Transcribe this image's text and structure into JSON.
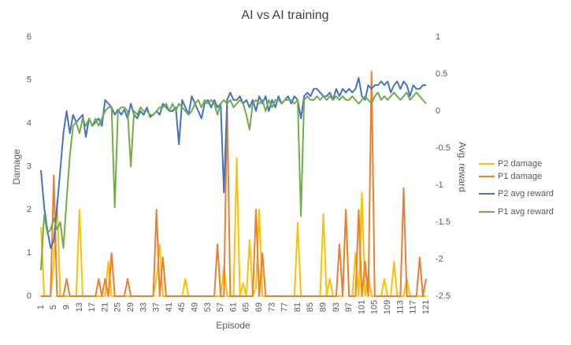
{
  "chart_data": {
    "type": "line",
    "title": "AI vs AI training",
    "x_label": "Episode",
    "y_label": "Damage",
    "y2_label": "Avg. reward",
    "categories": [
      1,
      null,
      null,
      null,
      5,
      null,
      null,
      null,
      9,
      null,
      null,
      null,
      13,
      null,
      null,
      null,
      17,
      null,
      null,
      null,
      21,
      null,
      null,
      null,
      25,
      null,
      null,
      null,
      29,
      null,
      null,
      null,
      33,
      null,
      null,
      null,
      37,
      null,
      null,
      null,
      41,
      null,
      null,
      null,
      45,
      null,
      null,
      null,
      49,
      null,
      null,
      null,
      53,
      null,
      null,
      null,
      57,
      null,
      null,
      null,
      61,
      null,
      null,
      null,
      65,
      null,
      null,
      null,
      69,
      null,
      null,
      null,
      73,
      null,
      null,
      null,
      77,
      null,
      null,
      null,
      81,
      null,
      null,
      null,
      85,
      null,
      null,
      null,
      89,
      null,
      null,
      null,
      93,
      null,
      null,
      null,
      97,
      null,
      null,
      null,
      101,
      null,
      null,
      null,
      105,
      null,
      null,
      null,
      109,
      null,
      null,
      null,
      113,
      null,
      null,
      null,
      117,
      null,
      null,
      null,
      121
    ],
    "ylim": [
      0,
      6
    ],
    "yticks": [
      0,
      1,
      2,
      3,
      4,
      5,
      6
    ],
    "y2lim": [
      -2.5,
      1
    ],
    "y2ticks": [
      1,
      0.5,
      0,
      -0.5,
      -1,
      -1.5,
      -2,
      -2.5
    ],
    "grid": false,
    "legend": "right",
    "series": [
      {
        "name": "P2 damage",
        "color": "#FFC000",
        "values": [
          1.6,
          0,
          0,
          0,
          0.8,
          2.2,
          0,
          0,
          0,
          0,
          0,
          0,
          2.0,
          0,
          0,
          0,
          0,
          0,
          0,
          0,
          0,
          0.8,
          0,
          0,
          0,
          0,
          0,
          0,
          0,
          0,
          0,
          0,
          0,
          0,
          0,
          0,
          0.4,
          1.2,
          0,
          0,
          0,
          0,
          0,
          0,
          0,
          0.4,
          0,
          0,
          0,
          0,
          0,
          0,
          0,
          0,
          0,
          0,
          0,
          0.7,
          0,
          0,
          0,
          3.2,
          0,
          0.3,
          0,
          1.3,
          0,
          0.2,
          2.0,
          0,
          0,
          0,
          0,
          0,
          0,
          0,
          0,
          0,
          0,
          0,
          1.7,
          0,
          0,
          0,
          0,
          0,
          0,
          0,
          1.9,
          0,
          0.4,
          0,
          0,
          0,
          0,
          2.0,
          0,
          0,
          1.0,
          0,
          2.4,
          0,
          0.5,
          0,
          0,
          0,
          0,
          0.4,
          0,
          0,
          0.8,
          0,
          0,
          0,
          0.4,
          0,
          0,
          0,
          0,
          0,
          0
        ]
      },
      {
        "name": "P1 damage",
        "color": "#ED7D31",
        "values": [
          0,
          0,
          0,
          0,
          2.8,
          0,
          0,
          0,
          0.4,
          0,
          0,
          0,
          0,
          0,
          0,
          0,
          0,
          0,
          0.4,
          0,
          0.4,
          0,
          1.0,
          0,
          0,
          0,
          0,
          0.4,
          0,
          0,
          0,
          0,
          0,
          0,
          0,
          0,
          2.0,
          0,
          0.9,
          0,
          0,
          0,
          0,
          0,
          0,
          0,
          0,
          0,
          0,
          0,
          0,
          0,
          0,
          0,
          0,
          1.2,
          0,
          0,
          4.4,
          0,
          0,
          0,
          0,
          0,
          0,
          0,
          0,
          2.0,
          0,
          1.0,
          0,
          0,
          0,
          0,
          0,
          0,
          0,
          0,
          0,
          0,
          0,
          0,
          0,
          0,
          0,
          0,
          0,
          0,
          0,
          0,
          0,
          0,
          0,
          1.2,
          0,
          2.0,
          0,
          0,
          0,
          2.0,
          0,
          0.8,
          0,
          5.2,
          0,
          0,
          0,
          0,
          0,
          0,
          0,
          0,
          0,
          2.5,
          0,
          0,
          0,
          0,
          0.9,
          0,
          0.4
        ]
      },
      {
        "name": "P2 avg reward",
        "color": "#4472C4",
        "axis": "y2",
        "values": [
          -0.8,
          -1.3,
          -1.6,
          -1.85,
          -1.75,
          -1.3,
          -0.8,
          -0.3,
          0,
          -0.3,
          -0.05,
          -0.15,
          -0.1,
          -0.05,
          -0.35,
          -0.1,
          -0.2,
          -0.15,
          -0.1,
          -0.2,
          0.15,
          0.1,
          0.05,
          -0.05,
          0.02,
          -0.05,
          0.02,
          -0.1,
          0.1,
          -0.05,
          -0.1,
          0,
          -0.05,
          0.05,
          -0.08,
          -0.05,
          0,
          -0.05,
          0.1,
          0.05,
          0,
          0,
          0.05,
          -0.45,
          0.15,
          0.05,
          -0.05,
          0.2,
          0.1,
          0,
          -0.1,
          0.1,
          0.15,
          0.05,
          0.15,
          0.05,
          0.1,
          -1.1,
          0.15,
          0.25,
          0.15,
          0.15,
          0.2,
          0.1,
          0.15,
          0.05,
          0.15,
          0,
          0.2,
          0.1,
          0.2,
          0,
          0.15,
          0.05,
          0.2,
          0.1,
          0.15,
          0.2,
          0.1,
          0.2,
          0.15,
          -0.1,
          0.2,
          0.25,
          0.2,
          0.3,
          0.3,
          0.25,
          0.2,
          0.2,
          0.25,
          0.15,
          0.3,
          0.2,
          0.3,
          0.25,
          0.3,
          0.25,
          0.3,
          0.45,
          0.2,
          0.15,
          0.35,
          0.3,
          0.35,
          0.35,
          0.4,
          0.35,
          0.4,
          0.25,
          0.35,
          0.4,
          0.3,
          0.4,
          0.35,
          0.2,
          0.35,
          0.3,
          0.3,
          0.35,
          0.35
        ]
      },
      {
        "name": "P1 avg reward",
        "color": "#70AD47",
        "axis": "y2",
        "values": [
          -2.15,
          -1.4,
          -1.65,
          -1.6,
          -1.45,
          -1.6,
          -1.5,
          -1.85,
          -1.2,
          -0.6,
          -0.2,
          -0.15,
          -0.3,
          -0.1,
          -0.2,
          -0.1,
          -0.2,
          -0.1,
          -0.2,
          -0.1,
          0,
          0.05,
          0.05,
          -1.3,
          0,
          0.05,
          0.05,
          0,
          -0.75,
          0,
          -0.05,
          0.05,
          0,
          0,
          -0.05,
          -0.05,
          0,
          0.05,
          0.05,
          0.1,
          0,
          0.1,
          0,
          0.1,
          0.05,
          0,
          -0.05,
          0,
          0.1,
          0.15,
          0.05,
          0.15,
          0.1,
          0.15,
          0.1,
          -0.05,
          0.1,
          0.15,
          0.1,
          0.15,
          0.05,
          0.1,
          0.15,
          0.1,
          -0.05,
          -0.25,
          0.1,
          0.15,
          0.1,
          0.15,
          0,
          0.15,
          0.05,
          0.15,
          0.15,
          0.1,
          0.15,
          0.15,
          0.15,
          0.1,
          0.15,
          -1.42,
          0.15,
          0.2,
          0.15,
          0.15,
          0.2,
          0.15,
          0.2,
          0.15,
          0.2,
          0.15,
          0.2,
          0.15,
          0.2,
          0.15,
          0.15,
          0.2,
          0.15,
          0.1,
          0.15,
          0.2,
          0.15,
          0.1,
          0.2,
          0.25,
          0.15,
          0.2,
          0.15,
          0.2,
          0.25,
          0.2,
          0.15,
          0.2,
          0.25,
          0.15,
          0.2,
          0.25,
          0.2,
          0.15,
          0.1
        ]
      }
    ]
  }
}
